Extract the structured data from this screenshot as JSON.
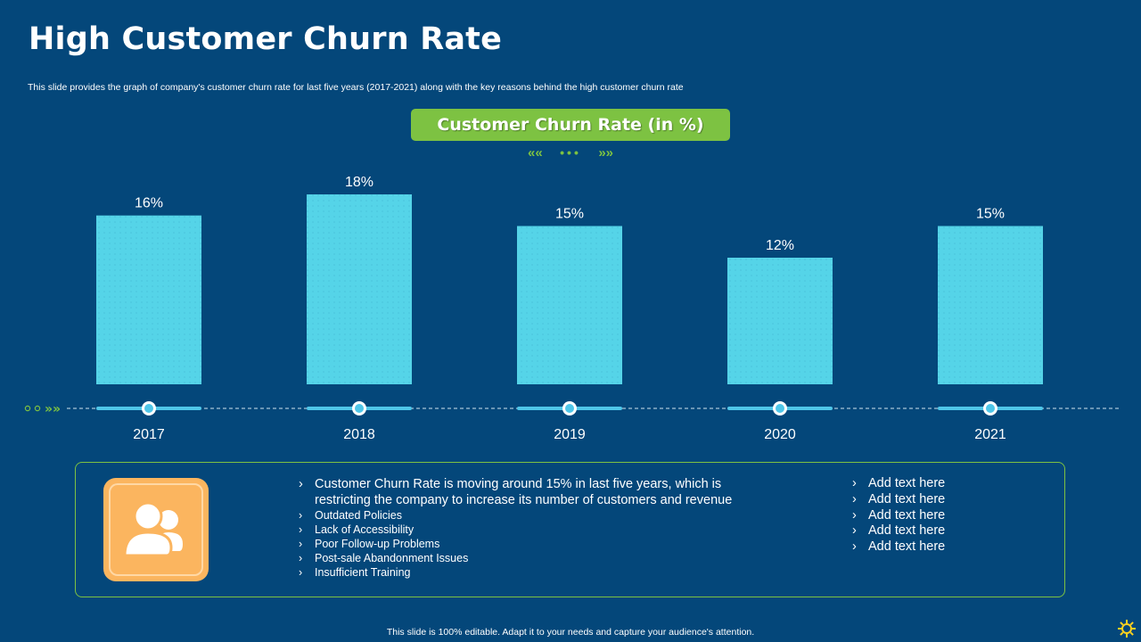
{
  "header": {
    "title": "High Customer Churn Rate",
    "subtitle": "This slide provides the graph of company's customer churn rate for last five years (2017-2021) along with the key reasons behind the high customer churn rate"
  },
  "colors": {
    "background": "#04477a",
    "bar": "#55d4e8",
    "accent_green": "#7dc242",
    "icon_tile": "#fbb55f",
    "timeline": "#4fc6e8"
  },
  "chart_data": {
    "type": "bar",
    "title": "Customer Churn Rate (in %)",
    "categories": [
      "2017",
      "2018",
      "2019",
      "2020",
      "2021"
    ],
    "values": [
      16,
      18,
      15,
      12,
      15
    ],
    "value_labels": [
      "16%",
      "18%",
      "15%",
      "12%",
      "15%"
    ],
    "unit": "%",
    "ylim": [
      0,
      18
    ],
    "xlabel": "",
    "ylabel": "",
    "grid": false,
    "legend": "none"
  },
  "decor": {
    "left_arrows": "»»",
    "center_left": "««",
    "center_dots": "•••",
    "center_right": "»»"
  },
  "info": {
    "icon": "users-icon",
    "reasons": [
      "Customer Churn Rate is moving around 15% in last five years, which is restricting the company to increase its number of customers and revenue",
      "Outdated Policies",
      "Lack of Accessibility",
      "Poor Follow-up Problems",
      "Post-sale Abandonment Issues",
      "Insufficient Training"
    ],
    "add_text": [
      "Add text here",
      "Add text here",
      "Add text here",
      "Add text here",
      "Add text here"
    ]
  },
  "footer": {
    "note": "This slide is 100% editable. Adapt it to your needs and capture your audience's attention.",
    "icon": "gear-icon"
  }
}
